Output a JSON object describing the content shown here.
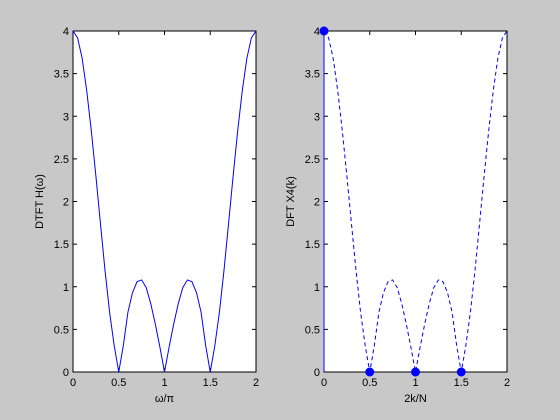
{
  "figure": {
    "background": "#c8c8c8"
  },
  "chart_data": [
    {
      "type": "line",
      "title": "",
      "xlabel": "ω/π",
      "ylabel": "DTFT H(ω)",
      "xlim": [
        0,
        2
      ],
      "ylim": [
        0,
        4
      ],
      "xticks": [
        0,
        0.5,
        1,
        1.5,
        2
      ],
      "xtick_labels": [
        "0",
        "0.5",
        "1",
        "1.5",
        "2"
      ],
      "yticks": [
        0,
        0.5,
        1,
        1.5,
        2,
        2.5,
        3,
        3.5,
        4
      ],
      "ytick_labels": [
        "0",
        "0.5",
        "1",
        "1.5",
        "2",
        "2.5",
        "3",
        "3.5",
        "4"
      ],
      "grid": false,
      "series": [
        {
          "style": "solid",
          "color": "#0000ff",
          "x": [
            0,
            0.05,
            0.1,
            0.15,
            0.2,
            0.25,
            0.3,
            0.35,
            0.4,
            0.45,
            0.5,
            0.55,
            0.6,
            0.65,
            0.7,
            0.75,
            0.8,
            0.85,
            0.9,
            0.95,
            1,
            1.05,
            1.1,
            1.15,
            1.2,
            1.25,
            1.3,
            1.35,
            1.4,
            1.45,
            1.5,
            1.55,
            1.6,
            1.65,
            1.7,
            1.75,
            1.8,
            1.85,
            1.9,
            1.95,
            2
          ],
          "y": [
            4,
            3.92,
            3.68,
            3.3,
            2.83,
            2.3,
            1.74,
            1.19,
            0.7,
            0.31,
            0,
            0.31,
            0.7,
            0.93,
            1.06,
            1.08,
            0.99,
            0.8,
            0.56,
            0.29,
            0,
            0.29,
            0.56,
            0.8,
            0.99,
            1.08,
            1.06,
            0.93,
            0.7,
            0.31,
            0,
            0.31,
            0.7,
            1.19,
            1.74,
            2.3,
            2.83,
            3.3,
            3.68,
            3.92,
            4
          ]
        }
      ]
    },
    {
      "type": "line",
      "title": "",
      "xlabel": "2k/N",
      "ylabel": "DFT X4(k)",
      "xlim": [
        0,
        2
      ],
      "ylim": [
        0,
        4
      ],
      "xticks": [
        0,
        0.5,
        1,
        1.5,
        2
      ],
      "xtick_labels": [
        "0",
        "0.5",
        "1",
        "1.5",
        "2"
      ],
      "yticks": [
        0,
        0.5,
        1,
        1.5,
        2,
        2.5,
        3,
        3.5,
        4
      ],
      "ytick_labels": [
        "0",
        "0.5",
        "1",
        "1.5",
        "2",
        "2.5",
        "3",
        "3.5",
        "4"
      ],
      "grid": false,
      "series": [
        {
          "style": "dashed",
          "color": "#0000ff",
          "x": [
            0,
            0.05,
            0.1,
            0.15,
            0.2,
            0.25,
            0.3,
            0.35,
            0.4,
            0.45,
            0.5,
            0.55,
            0.6,
            0.65,
            0.7,
            0.75,
            0.8,
            0.85,
            0.9,
            0.95,
            1,
            1.05,
            1.1,
            1.15,
            1.2,
            1.25,
            1.3,
            1.35,
            1.4,
            1.45,
            1.5,
            1.55,
            1.6,
            1.65,
            1.7,
            1.75,
            1.8,
            1.85,
            1.9,
            1.95,
            2
          ],
          "y": [
            4,
            3.92,
            3.68,
            3.3,
            2.83,
            2.3,
            1.74,
            1.19,
            0.7,
            0.31,
            0,
            0.31,
            0.7,
            0.93,
            1.06,
            1.08,
            0.99,
            0.8,
            0.56,
            0.29,
            0,
            0.29,
            0.56,
            0.8,
            0.99,
            1.08,
            1.06,
            0.93,
            0.7,
            0.31,
            0,
            0.31,
            0.7,
            1.19,
            1.74,
            2.3,
            2.83,
            3.3,
            3.68,
            3.92,
            4
          ]
        },
        {
          "style": "stem",
          "color": "#0000ff",
          "x": [
            0,
            0.5,
            1,
            1.5
          ],
          "y": [
            4,
            0,
            0,
            0
          ]
        }
      ]
    }
  ]
}
